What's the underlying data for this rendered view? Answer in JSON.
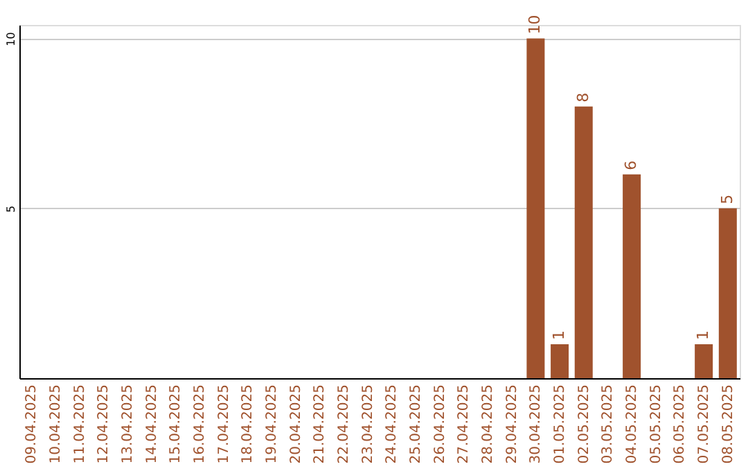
{
  "chart_data": {
    "type": "bar",
    "categories": [
      "09.04.2025",
      "10.04.2025",
      "11.04.2025",
      "12.04.2025",
      "13.04.2025",
      "14.04.2025",
      "15.04.2025",
      "16.04.2025",
      "17.04.2025",
      "18.04.2025",
      "19.04.2025",
      "20.04.2025",
      "21.04.2025",
      "22.04.2025",
      "23.04.2025",
      "24.04.2025",
      "25.04.2025",
      "26.04.2025",
      "27.04.2025",
      "28.04.2025",
      "29.04.2025",
      "30.04.2025",
      "01.05.2025",
      "02.05.2025",
      "03.05.2025",
      "04.05.2025",
      "05.05.2025",
      "06.05.2025",
      "07.05.2025",
      "08.05.2025"
    ],
    "values": [
      null,
      null,
      null,
      null,
      null,
      null,
      null,
      null,
      null,
      null,
      null,
      null,
      null,
      null,
      null,
      null,
      null,
      null,
      null,
      null,
      null,
      10,
      1,
      8,
      null,
      6,
      null,
      null,
      1,
      5
    ],
    "color": "#a0522d",
    "ylim": [
      0,
      10.4
    ],
    "yticks": [
      5,
      10
    ],
    "grid": "y",
    "data_labels": true
  }
}
